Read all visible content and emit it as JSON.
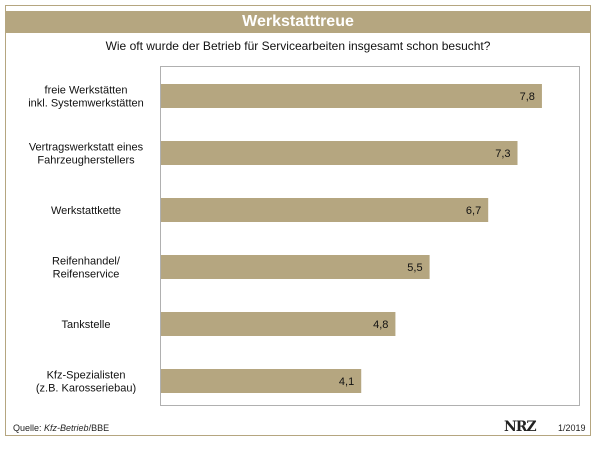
{
  "header": {
    "title": "Werkstatttreue"
  },
  "chart_data": {
    "type": "bar",
    "orientation": "horizontal",
    "title": "Werkstatttreue",
    "subtitle": "Wie oft wurde der Betrieb für Servicearbeiten insgesamt schon besucht?",
    "categories": [
      "freie Werkstätten\ninkl. Systemwerkstätten",
      "Vertragswerkstatt eines\nFahrzeugherstellers",
      "Werkstattkette",
      "Reifenhandel/\nReifenservice",
      "Tankstelle",
      "Kfz-Spezialisten\n(z.B. Karosseriebau)"
    ],
    "values": [
      7.8,
      7.3,
      6.7,
      5.5,
      4.8,
      4.1
    ],
    "value_labels": [
      "7,8",
      "7,3",
      "6,7",
      "5,5",
      "4,8",
      "4,1"
    ],
    "xlim": [
      0,
      8.6
    ],
    "grid": false,
    "bar_color": "#b5a680"
  },
  "footer": {
    "source_prefix": "Quelle: ",
    "source_italic": "Kfz-Betrieb",
    "source_suffix": "/BBE",
    "logo": "NRZ",
    "date": "1/2019"
  },
  "colors": {
    "accent": "#b5a680",
    "frame": "#b5a680"
  }
}
